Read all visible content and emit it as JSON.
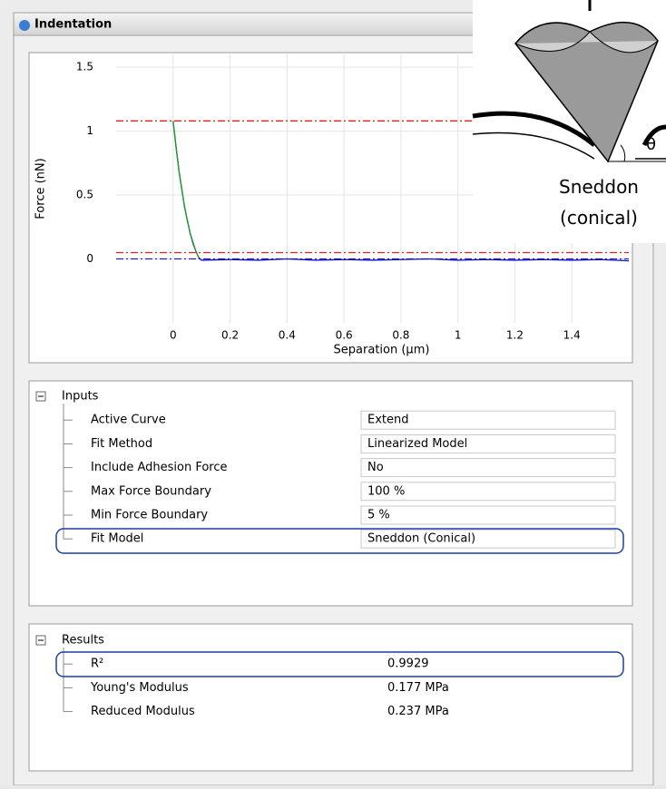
{
  "window": {
    "title": "Indentation"
  },
  "chart_data": {
    "type": "line",
    "x_label": "Separation (µm)",
    "y_label": "Force (nN)",
    "xlim": [
      -0.2,
      1.6
    ],
    "ylim": [
      -0.5,
      1.6
    ],
    "xticks": [
      0,
      0.2,
      0.4,
      0.6,
      0.8,
      1,
      1.2,
      1.4
    ],
    "yticks": [
      0,
      0.5,
      1,
      1.5
    ],
    "grid": true,
    "series": [
      {
        "color": "#1010d0",
        "x": [
          0,
          0.01,
          0.02,
          0.03,
          0.04,
          0.05,
          0.06,
          0.07,
          0.08,
          0.09,
          0.1,
          0.2,
          0.3,
          0.4,
          0.5,
          0.6,
          0.7,
          0.8,
          0.9,
          1,
          1.1,
          1.2,
          1.3,
          1.4,
          1.5,
          1.6
        ],
        "values": [
          1.08,
          0.88,
          0.7,
          0.55,
          0.41,
          0.3,
          0.2,
          0.12,
          0.06,
          0.01,
          -0.01,
          -0.005,
          -0.01,
          0,
          -0.01,
          -0.005,
          -0.01,
          -0.005,
          0,
          -0.01,
          -0.005,
          -0.01,
          -0.005,
          -0.01,
          -0.005,
          -0.015
        ]
      },
      {
        "color": "#20a020",
        "x": [
          0,
          0.02,
          0.04,
          0.06,
          0.08,
          0.09
        ],
        "values": [
          1.08,
          0.7,
          0.41,
          0.2,
          0.06,
          0.01
        ]
      }
    ],
    "hlines": [
      {
        "y": 1.08,
        "color": "#e02020"
      },
      {
        "y": 0.05,
        "color": "#e02020"
      },
      {
        "y": 0,
        "color": "#2020d0"
      }
    ]
  },
  "inset": {
    "label": [
      "Sneddon",
      "(conical)"
    ],
    "angle": "θ"
  },
  "inputs": {
    "title": "Inputs",
    "rows": [
      {
        "name": "Active Curve",
        "value": "Extend"
      },
      {
        "name": "Fit Method",
        "value": "Linearized Model"
      },
      {
        "name": "Include Adhesion Force",
        "value": "No"
      },
      {
        "name": "Max Force Boundary",
        "value": "100 %"
      },
      {
        "name": "Min Force Boundary",
        "value": "5 %"
      },
      {
        "name": "Fit Model",
        "value": "Sneddon (Conical)"
      }
    ]
  },
  "results": {
    "title": "Results",
    "rows": [
      {
        "name": "R²",
        "value": "0.9929"
      },
      {
        "name": "Young's Modulus",
        "value": "0.177 MPa"
      },
      {
        "name": "Reduced Modulus",
        "value": "0.237 MPa"
      }
    ]
  }
}
